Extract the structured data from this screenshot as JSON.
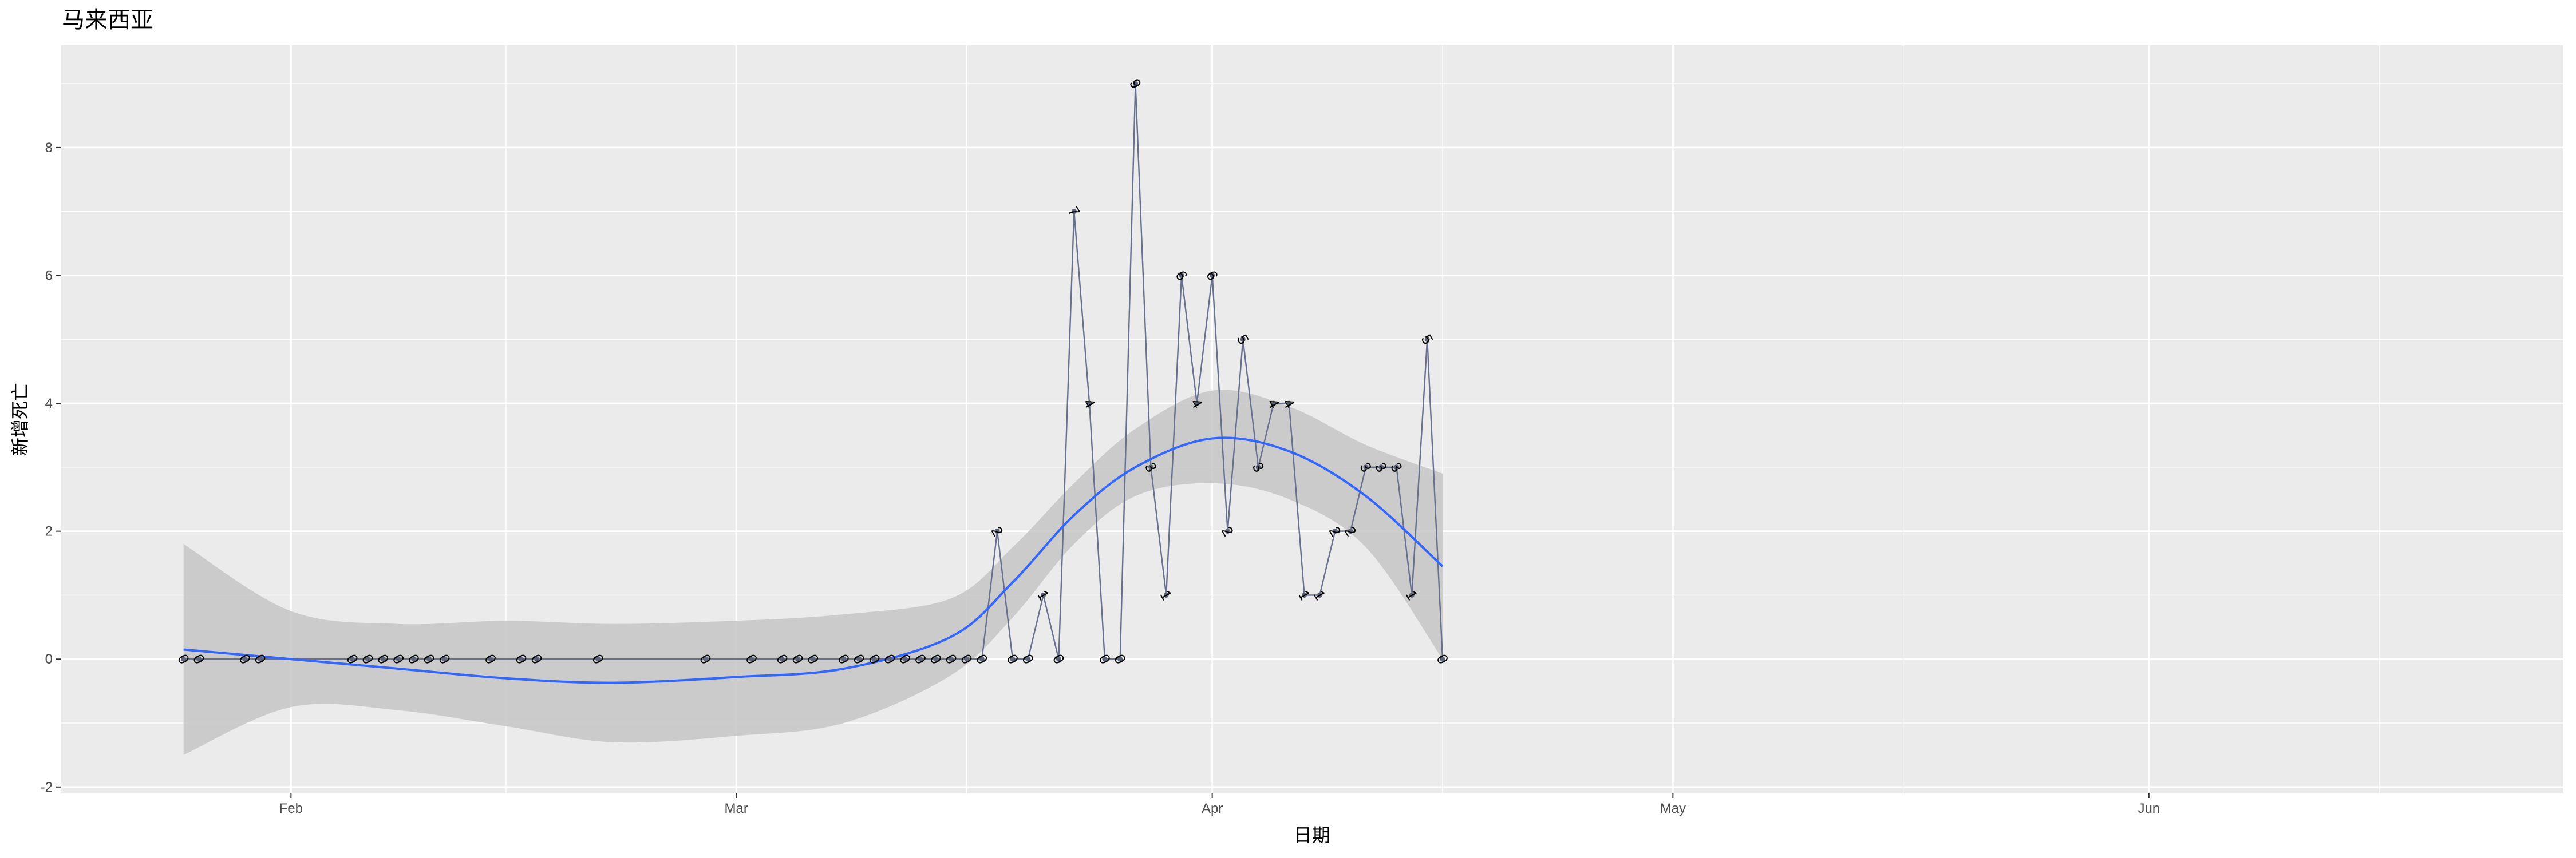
{
  "chart_data": {
    "type": "line",
    "title": "马来西亚",
    "xlabel": "日期",
    "ylabel": "新增死亡",
    "xlim": [
      "2020-01-17",
      "2020-06-28"
    ],
    "ylim": [
      -2.1,
      9.6
    ],
    "x_ticks": [
      {
        "date": "2020-02-01",
        "label": "Feb"
      },
      {
        "date": "2020-03-01",
        "label": "Mar"
      },
      {
        "date": "2020-04-01",
        "label": "Apr"
      },
      {
        "date": "2020-05-01",
        "label": "May"
      },
      {
        "date": "2020-06-01",
        "label": "Jun"
      }
    ],
    "x_minor_ticks": [
      "2020-01-16",
      "2020-02-15",
      "2020-03-16",
      "2020-04-16",
      "2020-05-16",
      "2020-06-16"
    ],
    "y_ticks": [
      -2,
      0,
      2,
      4,
      6,
      8
    ],
    "grid": true,
    "colors": {
      "panel": "#ebebeb",
      "grid": "#ffffff",
      "series_line": "#67718f",
      "point": "#5b6275",
      "smooth_line": "#3366ff",
      "ribbon": "#c6c6c6"
    },
    "series": [
      {
        "x": [
          "2020-01-25",
          "2020-01-26",
          "2020-01-29",
          "2020-01-30",
          "2020-02-05",
          "2020-02-06",
          "2020-02-07",
          "2020-02-08",
          "2020-02-09",
          "2020-02-10",
          "2020-02-11",
          "2020-02-14",
          "2020-02-16",
          "2020-02-17",
          "2020-02-21",
          "2020-02-28",
          "2020-03-02",
          "2020-03-04",
          "2020-03-05",
          "2020-03-06",
          "2020-03-08",
          "2020-03-09",
          "2020-03-10",
          "2020-03-11",
          "2020-03-12",
          "2020-03-13",
          "2020-03-14",
          "2020-03-15",
          "2020-03-16",
          "2020-03-17",
          "2020-03-18",
          "2020-03-19",
          "2020-03-20",
          "2020-03-21",
          "2020-03-22",
          "2020-03-23",
          "2020-03-24",
          "2020-03-25",
          "2020-03-26",
          "2020-03-27",
          "2020-03-28",
          "2020-03-29",
          "2020-03-30",
          "2020-03-31",
          "2020-04-01",
          "2020-04-02",
          "2020-04-03",
          "2020-04-04",
          "2020-04-05",
          "2020-04-06",
          "2020-04-07",
          "2020-04-08",
          "2020-04-09",
          "2020-04-10",
          "2020-04-11",
          "2020-04-12",
          "2020-04-13",
          "2020-04-14",
          "2020-04-15",
          "2020-04-16"
        ],
        "values": [
          0,
          0,
          0,
          0,
          0,
          0,
          0,
          0,
          0,
          0,
          0,
          0,
          0,
          0,
          0,
          0,
          0,
          0,
          0,
          0,
          0,
          0,
          0,
          0,
          0,
          0,
          0,
          0,
          0,
          0,
          2,
          0,
          0,
          1,
          0,
          7,
          4,
          0,
          0,
          9,
          3,
          1,
          6,
          4,
          6,
          2,
          5,
          3,
          4,
          4,
          1,
          1,
          2,
          2,
          3,
          3,
          3,
          1,
          5,
          0
        ],
        "labels": [
          "0",
          "0",
          "0",
          "0",
          "0",
          "0",
          "0",
          "0",
          "0",
          "0",
          "0",
          "0",
          "0",
          "0",
          "0",
          "0",
          "0",
          "0",
          "0",
          "0",
          "0",
          "0",
          "0",
          "0",
          "0",
          "0",
          "0",
          "0",
          "0",
          "0",
          "2",
          "0",
          "0",
          "1",
          "0",
          "7",
          "4",
          "0",
          "0",
          "9",
          "3",
          "1",
          "6",
          "4",
          "6",
          "2",
          "5",
          "3",
          "4",
          "4",
          "1",
          "1",
          "2",
          "2",
          "3",
          "3",
          "3",
          "1",
          "5",
          "0"
        ]
      }
    ],
    "smooth": {
      "x": [
        "2020-01-25",
        "2020-02-01",
        "2020-02-08",
        "2020-02-15",
        "2020-02-22",
        "2020-03-01",
        "2020-03-08",
        "2020-03-15",
        "2020-03-19",
        "2020-03-23",
        "2020-03-27",
        "2020-04-01",
        "2020-04-06",
        "2020-04-11",
        "2020-04-16"
      ],
      "y": [
        0.15,
        0.0,
        -0.15,
        -0.3,
        -0.37,
        -0.28,
        -0.15,
        0.35,
        1.2,
        2.25,
        3.0,
        3.45,
        3.25,
        2.55,
        1.45
      ],
      "lower": [
        -1.5,
        -0.75,
        -0.8,
        -1.05,
        -1.3,
        -1.2,
        -1.0,
        -0.25,
        0.65,
        1.8,
        2.55,
        2.75,
        2.5,
        1.75,
        0.0
      ],
      "upper": [
        1.8,
        0.75,
        0.55,
        0.6,
        0.55,
        0.6,
        0.7,
        0.95,
        1.75,
        2.75,
        3.6,
        4.2,
        3.95,
        3.35,
        2.9
      ]
    }
  }
}
